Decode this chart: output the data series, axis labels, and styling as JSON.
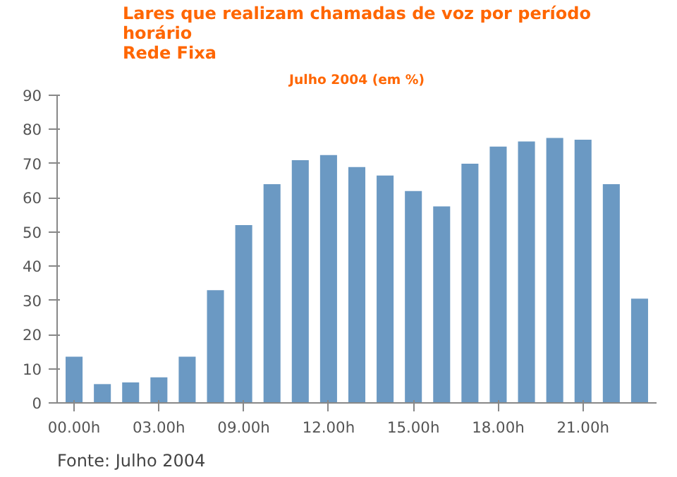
{
  "chart_data": {
    "type": "bar",
    "title": "Lares que realizam chamadas de voz por período\nhorário\nRede Fixa",
    "subtitle": "Julho 2004 (em %)",
    "categories": [
      "00.00h",
      null,
      null,
      "03.00h",
      null,
      null,
      "09.00h",
      null,
      null,
      "12.00h",
      null,
      null,
      "15.00h",
      null,
      null,
      "18.00h",
      null,
      null,
      "21.00h",
      null,
      null
    ],
    "values": [
      13.5,
      5.5,
      6,
      7.5,
      13.5,
      33,
      52,
      64,
      71,
      72.5,
      69,
      66.5,
      62,
      57.5,
      70,
      75,
      76.5,
      77.5,
      77,
      64,
      30.5
    ],
    "color": "#6b99c3",
    "ylim": [
      0,
      90
    ],
    "yticks": [
      0,
      10,
      20,
      30,
      40,
      50,
      60,
      70,
      80,
      90
    ],
    "grid": false,
    "annotations": [
      "Fonte: Julho 2004"
    ]
  }
}
